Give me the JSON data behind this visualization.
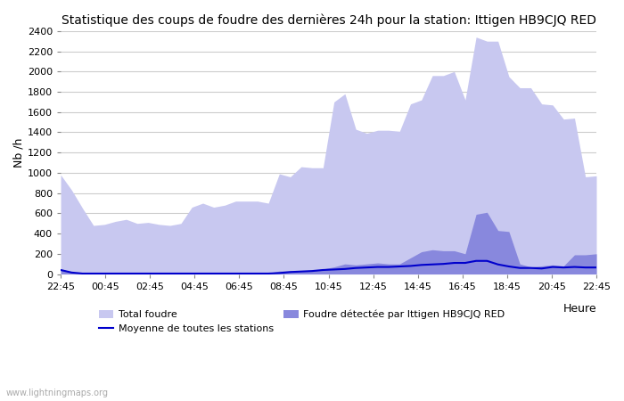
{
  "title": "Statistique des coups de foudre des dernières 24h pour la station: Ittigen HB9CJQ RED",
  "xlabel": "Heure",
  "ylabel": "Nb /h",
  "watermark": "www.lightningmaps.org",
  "ylim": [
    0,
    2400
  ],
  "yticks": [
    0,
    200,
    400,
    600,
    800,
    1000,
    1200,
    1400,
    1600,
    1800,
    2000,
    2200,
    2400
  ],
  "xtick_labels": [
    "22:45",
    "00:45",
    "02:45",
    "04:45",
    "06:45",
    "08:45",
    "10:45",
    "12:45",
    "14:45",
    "16:45",
    "18:45",
    "20:45",
    "22:45"
  ],
  "color_total": "#c8c8f0",
  "color_detected": "#8888dd",
  "color_mean": "#0000cc",
  "legend_total": "Total foudre",
  "legend_detected": "Foudre détectée par Ittigen HB9CJQ RED",
  "legend_mean": "Moyenne de toutes les stations",
  "total_foudre": [
    980,
    830,
    650,
    480,
    490,
    520,
    540,
    500,
    510,
    490,
    480,
    500,
    660,
    700,
    660,
    680,
    720,
    720,
    720,
    700,
    990,
    960,
    1060,
    1050,
    1050,
    1700,
    1780,
    1430,
    1390,
    1420,
    1420,
    1410,
    1680,
    1720,
    1960,
    1960,
    2000,
    1720,
    2340,
    2300,
    2300,
    1950,
    1840,
    1840,
    1680,
    1670,
    1530,
    1540,
    960,
    970
  ],
  "detected_foudre": [
    50,
    20,
    10,
    10,
    10,
    10,
    10,
    10,
    10,
    10,
    10,
    10,
    10,
    10,
    10,
    10,
    10,
    10,
    10,
    10,
    30,
    30,
    30,
    35,
    50,
    70,
    100,
    90,
    100,
    110,
    100,
    100,
    160,
    220,
    240,
    230,
    230,
    200,
    590,
    610,
    430,
    420,
    100,
    70,
    80,
    90,
    80,
    190,
    190,
    200
  ],
  "mean_foudre": [
    40,
    15,
    5,
    5,
    5,
    5,
    5,
    5,
    5,
    5,
    5,
    5,
    5,
    5,
    5,
    5,
    5,
    5,
    5,
    5,
    10,
    20,
    25,
    30,
    40,
    45,
    50,
    60,
    65,
    70,
    70,
    75,
    80,
    90,
    95,
    100,
    110,
    110,
    130,
    130,
    95,
    75,
    60,
    60,
    55,
    70,
    65,
    70,
    65,
    65
  ]
}
